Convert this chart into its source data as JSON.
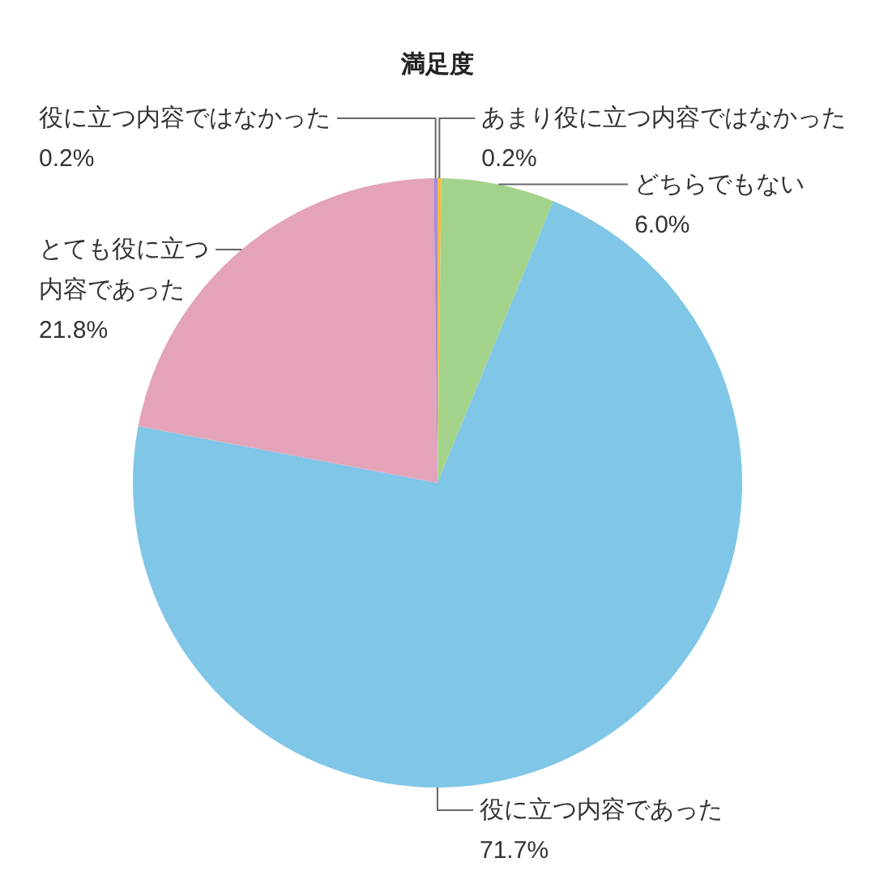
{
  "chart_data": {
    "type": "pie",
    "title": "満足度",
    "categories": [
      "あまり役に立つ内容ではなかった",
      "どちらでもない",
      "役に立つ内容であった",
      "とても役に立つ内容であった",
      "役に立つ内容ではなかった"
    ],
    "values": [
      0.2,
      6.0,
      71.7,
      21.8,
      0.2
    ],
    "value_labels": [
      "0.2%",
      "6.0%",
      "71.7%",
      "21.8%",
      "0.2%"
    ],
    "colors": [
      "#f6b846",
      "#a3d38b",
      "#80c6e6",
      "#e4a3b9",
      "#a58fd5"
    ]
  }
}
